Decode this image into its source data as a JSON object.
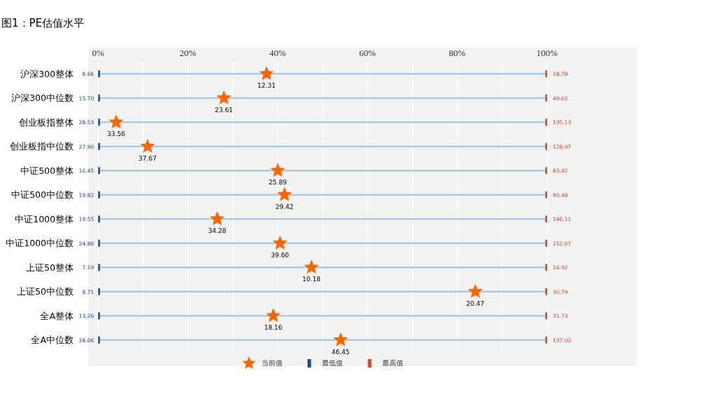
{
  "chart_data": {
    "type": "scatter",
    "orientation": "horizontal",
    "title": "图1：PE估值水平",
    "categories": [
      "沪深300整体",
      "沪深300中位数",
      "创业板指整体",
      "创业板指中位数",
      "中证500整体",
      "中证500中位数",
      "中证1000整体",
      "中证1000中位数",
      "上证50整体",
      "上证50中位数",
      "全A整体",
      "全A中位数"
    ],
    "xlim": [
      0,
      100
    ],
    "xticks": [
      {
        "value": 0,
        "label": "0%"
      },
      {
        "value": 10,
        "label": null
      },
      {
        "value": 20,
        "label": "20%"
      },
      {
        "value": 30,
        "label": null
      },
      {
        "value": 40,
        "label": "40%"
      },
      {
        "value": 50,
        "label": null
      },
      {
        "value": 60,
        "label": "60%"
      },
      {
        "value": 70,
        "label": null
      },
      {
        "value": 80,
        "label": "80%"
      },
      {
        "value": 90,
        "label": null
      },
      {
        "value": 100,
        "label": "100%"
      }
    ],
    "grid": true,
    "legend": "bottom",
    "series": [
      {
        "name": "当前值",
        "color": "#ff6600",
        "marker": "star",
        "values": [
          37.5,
          28,
          4,
          11,
          40,
          41.5,
          26.5,
          40.5,
          47.5,
          84,
          39,
          54
        ]
      },
      {
        "name": "最低值",
        "color": "#1f497d",
        "marker": "square",
        "values": [
          0,
          0,
          0,
          0,
          0,
          0,
          0,
          0,
          0,
          0,
          0,
          0
        ]
      },
      {
        "name": "最高值",
        "color": "#d9432a",
        "marker": "square",
        "values": [
          100,
          100,
          100,
          100,
          100,
          100,
          100,
          100,
          100,
          100,
          100,
          100
        ]
      }
    ],
    "annotations": [
      {
        "text": "12.31",
        "x": 37.5,
        "y": "沪深300整体"
      },
      {
        "text": "23.61",
        "x": 28,
        "y": "沪深300中位数"
      },
      {
        "text": "33.56",
        "x": 4,
        "y": "创业板指整体"
      },
      {
        "text": "37.67",
        "x": 11,
        "y": "创业板指中位数"
      },
      {
        "text": "25.89",
        "x": 40,
        "y": "中证500整体"
      },
      {
        "text": "29.42",
        "x": 41.5,
        "y": "中证500中位数"
      },
      {
        "text": "34.28",
        "x": 26.5,
        "y": "中证1000整体"
      },
      {
        "text": "39.60",
        "x": 40.5,
        "y": "中证1000中位数"
      },
      {
        "text": "10.18",
        "x": 47.5,
        "y": "上证50整体"
      },
      {
        "text": "20.47",
        "x": 84,
        "y": "上证50中位数"
      },
      {
        "text": "18.16",
        "x": 39,
        "y": "全A整体"
      },
      {
        "text": "46.45",
        "x": 54,
        "y": "全A中位数"
      },
      {
        "text": "8.66",
        "x": 0,
        "y": "沪深300整体"
      },
      {
        "text": "15.70",
        "x": 0,
        "y": "沪深300中位数"
      },
      {
        "text": "28.53",
        "x": 0,
        "y": "创业板指整体"
      },
      {
        "text": "27.90",
        "x": 0,
        "y": "创业板指中位数"
      },
      {
        "text": "16.45",
        "x": 0,
        "y": "中证500整体"
      },
      {
        "text": "19.82",
        "x": 0,
        "y": "中证500中位数"
      },
      {
        "text": "19.55",
        "x": 0,
        "y": "中证1000整体"
      },
      {
        "text": "24.86",
        "x": 0,
        "y": "中证1000中位数"
      },
      {
        "text": "7.19",
        "x": 0,
        "y": "上证50整体"
      },
      {
        "text": "8.71",
        "x": 0,
        "y": "上证50中位数"
      },
      {
        "text": "13.26",
        "x": 0,
        "y": "全A整体"
      },
      {
        "text": "28.06",
        "x": 0,
        "y": "全A中位数"
      },
      {
        "text": "18.78",
        "x": 100,
        "y": "沪深300整体"
      },
      {
        "text": "49.62",
        "x": 100,
        "y": "沪深300中位数"
      },
      {
        "text": "135.13",
        "x": 100,
        "y": "创业板指整体"
      },
      {
        "text": "128.97",
        "x": 100,
        "y": "创业板指中位数"
      },
      {
        "text": "83.42",
        "x": 100,
        "y": "中证500整体"
      },
      {
        "text": "90.48",
        "x": 100,
        "y": "中证500中位数"
      },
      {
        "text": "146.11",
        "x": 100,
        "y": "中证1000整体"
      },
      {
        "text": "152.67",
        "x": 100,
        "y": "中证1000中位数"
      },
      {
        "text": "14.92",
        "x": 100,
        "y": "上证50整体"
      },
      {
        "text": "30.79",
        "x": 100,
        "y": "上证50中位数"
      },
      {
        "text": "31.73",
        "x": 100,
        "y": "全A整体"
      },
      {
        "text": "137.02",
        "x": 100,
        "y": "全A中位数"
      }
    ]
  }
}
